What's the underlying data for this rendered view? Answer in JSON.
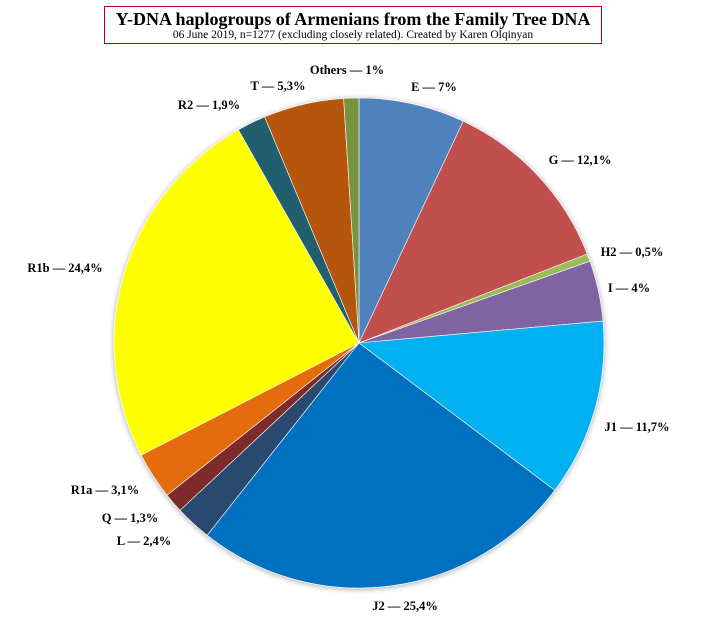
{
  "chart_data": {
    "type": "pie",
    "title": "Y-DNA haplogroups of Armenians from the Family Tree DNA",
    "subtitle": "06 June 2019, n=1277 (excluding closely related). Created by Karen Olqinyan",
    "slices": [
      {
        "name": "E",
        "value": 7,
        "label": "E — 7%",
        "color": "#4f81bd"
      },
      {
        "name": "G",
        "value": 12.1,
        "label": "G — 12,1%",
        "color": "#c0504d"
      },
      {
        "name": "H2",
        "value": 0.5,
        "label": "H2 — 0,5%",
        "color": "#9bbb59"
      },
      {
        "name": "I",
        "value": 4,
        "label": "I — 4%",
        "color": "#8064a2"
      },
      {
        "name": "J1",
        "value": 11.7,
        "label": "J1 — 11,7%",
        "color": "#00b0f0"
      },
      {
        "name": "J2",
        "value": 25.4,
        "label": "J2 — 25,4%",
        "color": "#0070c0"
      },
      {
        "name": "L",
        "value": 2.4,
        "label": "L — 2,4%",
        "color": "#2a4a6e"
      },
      {
        "name": "Q",
        "value": 1.3,
        "label": "Q — 1,3%",
        "color": "#7b2c2c"
      },
      {
        "name": "R1a",
        "value": 3.1,
        "label": "R1a — 3,1%",
        "color": "#e46c0a"
      },
      {
        "name": "R1b",
        "value": 24.4,
        "label": "R1b — 24,4%",
        "color": "#ffff00"
      },
      {
        "name": "R2",
        "value": 1.9,
        "label": "R2 — 1,9%",
        "color": "#215f6e"
      },
      {
        "name": "T",
        "value": 5.3,
        "label": "T — 5,3%",
        "color": "#b65708"
      },
      {
        "name": "Others",
        "value": 1,
        "label": "Others — 1%",
        "color": "#77933c"
      }
    ]
  }
}
